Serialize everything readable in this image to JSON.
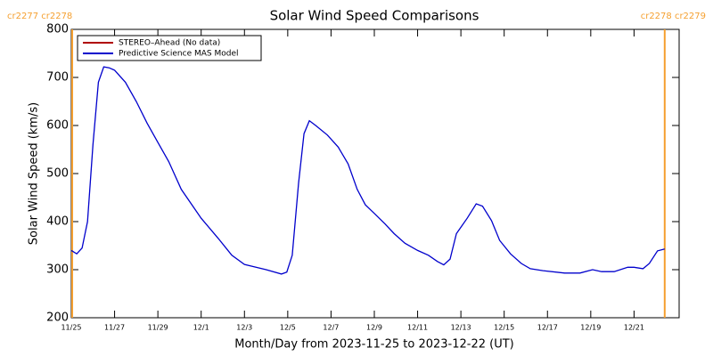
{
  "chart_data": {
    "type": "line",
    "title": "Solar Wind Speed Comparisons",
    "xlabel": "Month/Day from 2023-11-25 to 2023-12-22 (UT)",
    "ylabel": "Solar Wind Speed (km/s)",
    "x": [
      "2023-11-25T00:00",
      "2023-11-25T06:00",
      "2023-11-25T12:00",
      "2023-11-25T18:00",
      "2023-11-26T00:00",
      "2023-11-26T06:00",
      "2023-11-26T12:00",
      "2023-11-26T18:00",
      "2023-11-27T00:00",
      "2023-11-27T12:00",
      "2023-11-28T00:00",
      "2023-11-28T12:00",
      "2023-11-29T00:00",
      "2023-11-29T12:00",
      "2023-11-30T02:00",
      "2023-12-01T00:00",
      "2023-12-01T19:00",
      "2023-12-02T10:00",
      "2023-12-03T00:00",
      "2023-12-04T00:00",
      "2023-12-04T17:00",
      "2023-12-04T23:00",
      "2023-12-05T05:00",
      "2023-12-05T12:00",
      "2023-12-05T18:00",
      "2023-12-06T00:00",
      "2023-12-06T07:00",
      "2023-12-06T20:00",
      "2023-12-07T08:00",
      "2023-12-07T19:00",
      "2023-12-08T05:00",
      "2023-12-08T14:00",
      "2023-12-09T00:00",
      "2023-12-09T12:00",
      "2023-12-09T22:00",
      "2023-12-10T10:00",
      "2023-12-11T00:00",
      "2023-12-11T12:00",
      "2023-12-11T22:00",
      "2023-12-12T05:00",
      "2023-12-12T12:00",
      "2023-12-12T19:00",
      "2023-12-13T07:00",
      "2023-12-13T17:00",
      "2023-12-14T00:00",
      "2023-12-14T10:00",
      "2023-12-14T19:00",
      "2023-12-15T07:00",
      "2023-12-15T19:00",
      "2023-12-16T05:00",
      "2023-12-16T19:00",
      "2023-12-17T19:00",
      "2023-12-18T12:00",
      "2023-12-19T02:00",
      "2023-12-19T12:00",
      "2023-12-20T02:00",
      "2023-12-20T17:00",
      "2023-12-21T00:00",
      "2023-12-21T10:00",
      "2023-12-21T17:00",
      "2023-12-22T02:00",
      "2023-12-22T10:00"
    ],
    "series": [
      {
        "name": "STEREO–Ahead (No data)",
        "color": "#b00000",
        "values": [
          null,
          null,
          null,
          null,
          null,
          null,
          null,
          null,
          null,
          null,
          null,
          null,
          null,
          null,
          null,
          null,
          null,
          null,
          null,
          null,
          null,
          null,
          null,
          null,
          null,
          null,
          null,
          null,
          null,
          null,
          null,
          null,
          null,
          null,
          null,
          null,
          null,
          null,
          null,
          null,
          null,
          null,
          null,
          null,
          null,
          null,
          null,
          null,
          null,
          null,
          null,
          null,
          null,
          null,
          null,
          null,
          null,
          null,
          null,
          null,
          null,
          null
        ]
      },
      {
        "name": "Predictive Science MAS Model",
        "color": "#0000cc",
        "values": [
          340,
          333,
          345,
          400,
          560,
          690,
          722,
          720,
          715,
          690,
          650,
          605,
          565,
          525,
          467,
          407,
          365,
          330,
          311,
          300,
          291,
          295,
          330,
          480,
          583,
          610,
          600,
          580,
          555,
          520,
          467,
          435,
          417,
          395,
          375,
          355,
          340,
          330,
          317,
          310,
          322,
          375,
          407,
          437,
          432,
          402,
          361,
          333,
          313,
          302,
          298,
          293,
          293,
          300,
          296,
          296,
          305,
          305,
          302,
          313,
          339,
          343
        ]
      }
    ],
    "xlim": [
      "2023-11-25T00:00",
      "2023-12-23T02:00"
    ],
    "xticks": [
      {
        "value": "2023-11-25T00:00",
        "label": "11/25"
      },
      {
        "value": "2023-11-27T00:00",
        "label": "11/27"
      },
      {
        "value": "2023-11-29T00:00",
        "label": "11/29"
      },
      {
        "value": "2023-12-01T00:00",
        "label": "12/1"
      },
      {
        "value": "2023-12-03T00:00",
        "label": "12/3"
      },
      {
        "value": "2023-12-05T00:00",
        "label": "12/5"
      },
      {
        "value": "2023-12-07T00:00",
        "label": "12/7"
      },
      {
        "value": "2023-12-09T00:00",
        "label": "12/9"
      },
      {
        "value": "2023-12-11T00:00",
        "label": "12/11"
      },
      {
        "value": "2023-12-13T00:00",
        "label": "12/13"
      },
      {
        "value": "2023-12-15T00:00",
        "label": "12/15"
      },
      {
        "value": "2023-12-17T00:00",
        "label": "12/17"
      },
      {
        "value": "2023-12-19T00:00",
        "label": "12/19"
      },
      {
        "value": "2023-12-21T00:00",
        "label": "12/21"
      }
    ],
    "ylim": [
      200,
      800
    ],
    "yticks": [
      200,
      300,
      400,
      500,
      600,
      700,
      800
    ],
    "legend": "top-left",
    "carrington_boundaries": [
      {
        "x": "2023-11-25T01:00",
        "label": "cr2277 cr2278",
        "color": "#f5a030"
      },
      {
        "x": "2023-12-22T10:00",
        "label": "cr2278 cr2279",
        "color": "#f5a030"
      }
    ]
  }
}
